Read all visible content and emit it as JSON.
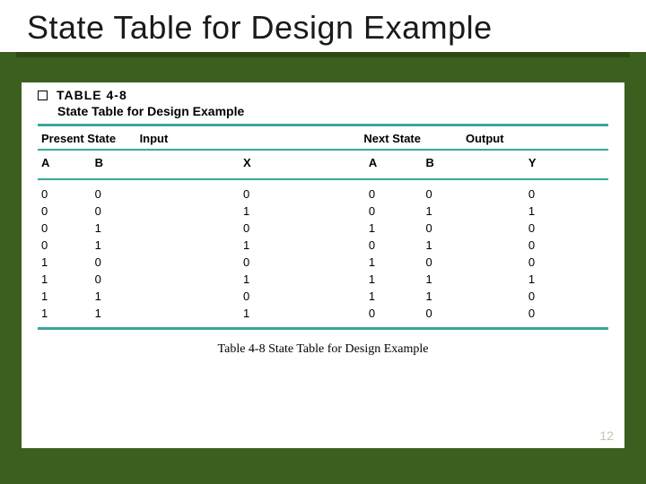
{
  "slide": {
    "title": "State Table for Design Example",
    "page_number": "12"
  },
  "table": {
    "label": "TABLE 4-8",
    "subtitle": "State Table for Design Example",
    "caption": "Table 4-8  State Table for Design Example",
    "group_headers": {
      "present": "Present State",
      "input": "Input",
      "next": "Next State",
      "output": "Output"
    },
    "var_headers": {
      "a1": "A",
      "b1": "B",
      "x": "X",
      "a2": "A",
      "b2": "B",
      "y": "Y"
    },
    "rows": [
      {
        "a1": "0",
        "b1": "0",
        "x": "0",
        "a2": "0",
        "b2": "0",
        "y": "0"
      },
      {
        "a1": "0",
        "b1": "0",
        "x": "1",
        "a2": "0",
        "b2": "1",
        "y": "1"
      },
      {
        "a1": "0",
        "b1": "1",
        "x": "0",
        "a2": "1",
        "b2": "0",
        "y": "0"
      },
      {
        "a1": "0",
        "b1": "1",
        "x": "1",
        "a2": "0",
        "b2": "1",
        "y": "0"
      },
      {
        "a1": "1",
        "b1": "0",
        "x": "0",
        "a2": "1",
        "b2": "0",
        "y": "0"
      },
      {
        "a1": "1",
        "b1": "0",
        "x": "1",
        "a2": "1",
        "b2": "1",
        "y": "1"
      },
      {
        "a1": "1",
        "b1": "1",
        "x": "0",
        "a2": "1",
        "b2": "1",
        "y": "0"
      },
      {
        "a1": "1",
        "b1": "1",
        "x": "1",
        "a2": "0",
        "b2": "0",
        "y": "0"
      }
    ],
    "colors": {
      "rule": "#3aa79b",
      "background": "#ffffff",
      "slide_bg": "#3b5f1e"
    }
  }
}
